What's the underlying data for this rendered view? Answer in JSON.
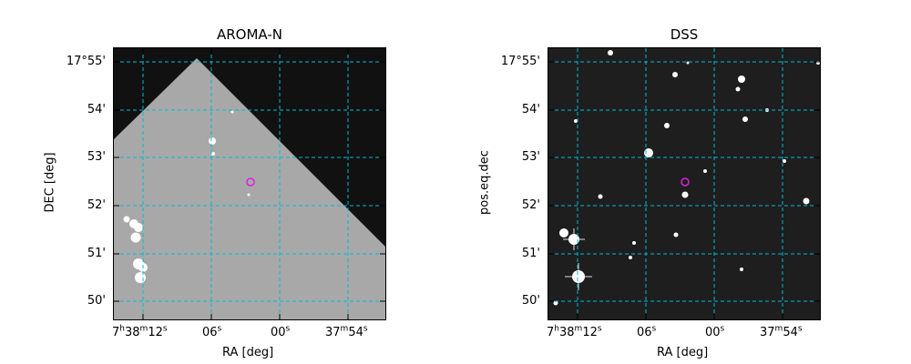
{
  "panels": [
    {
      "title": "AROMA-N",
      "xlabel": "RA [deg]",
      "ylabel": "DEC [deg]",
      "xticks": [
        "7h38m12s",
        "06s",
        "00s",
        "37m54s"
      ],
      "yticks": [
        "17°55'",
        "54'",
        "53'",
        "52'",
        "51'",
        "50'"
      ]
    },
    {
      "title": "DSS",
      "xlabel": "RA [deg]",
      "ylabel": "pos.eq.dec",
      "xticks": [
        "7h38m12s",
        "06s",
        "00s",
        "37m54s"
      ],
      "yticks": [
        "17°55'",
        "54'",
        "53'",
        "52'",
        "51'",
        "50'"
      ]
    }
  ],
  "colors": {
    "grid": "#00bcd4",
    "marker": "#e020e0",
    "background_dark": "#111111",
    "sky_gray": "#a8a8a8"
  }
}
